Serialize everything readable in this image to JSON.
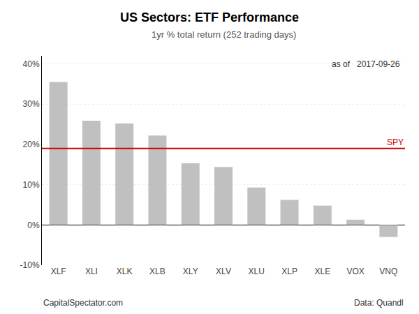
{
  "chart_data": {
    "type": "bar",
    "title": "US Sectors: ETF Performance",
    "subtitle": "1yr % total return (252 trading days)",
    "categories": [
      "XLF",
      "XLI",
      "XLK",
      "XLB",
      "XLY",
      "XLV",
      "XLU",
      "XLP",
      "XLE",
      "VOX",
      "VNQ"
    ],
    "values": [
      0.355,
      0.259,
      0.252,
      0.222,
      0.153,
      0.144,
      0.093,
      0.062,
      0.048,
      0.013,
      -0.03
    ],
    "color": "#c0c0c0",
    "ylim": [
      -0.1,
      0.42
    ],
    "yticks": [
      {
        "value": -0.1,
        "label": "-10%"
      },
      {
        "value": 0.0,
        "label": "0%"
      },
      {
        "value": 0.1,
        "label": "10%"
      },
      {
        "value": 0.2,
        "label": "20%"
      },
      {
        "value": 0.3,
        "label": "30%"
      },
      {
        "value": 0.4,
        "label": "40%"
      }
    ],
    "grid": true,
    "reference_line": {
      "value": 0.19,
      "label": "SPY",
      "color": "#cc0000"
    },
    "annotations": [
      "as of   2017-09-26",
      "CapitalSpectator.com",
      "Data: Quandl"
    ]
  }
}
